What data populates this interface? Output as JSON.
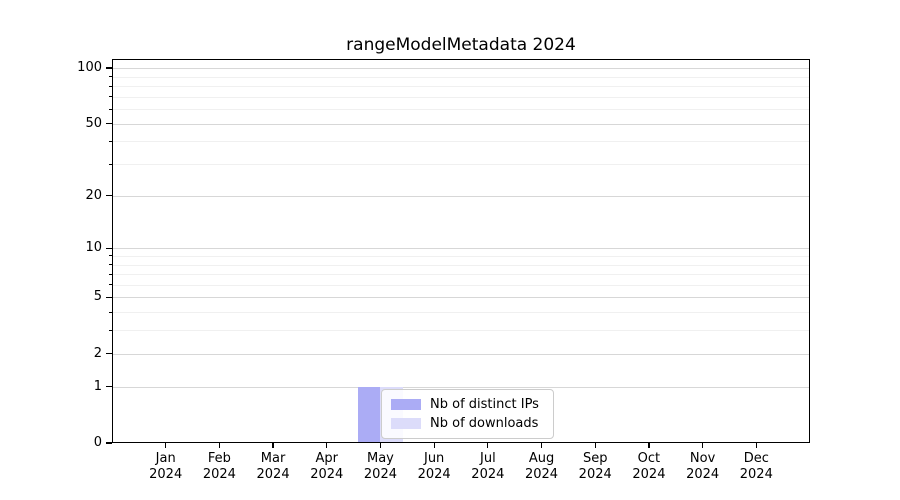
{
  "chart_data": {
    "type": "bar",
    "title": "rangeModelMetadata 2024",
    "categories": [
      "Jan",
      "Feb",
      "Mar",
      "Apr",
      "May",
      "Jun",
      "Jul",
      "Aug",
      "Sep",
      "Oct",
      "Nov",
      "Dec"
    ],
    "year_label": "2024",
    "series": [
      {
        "name": "Nb of distinct IPs",
        "color": "#abacf5",
        "values": [
          0,
          0,
          0,
          0,
          1,
          0,
          0,
          0,
          0,
          0,
          0,
          0
        ]
      },
      {
        "name": "Nb of downloads",
        "color": "#dcdcfa",
        "values": [
          0,
          0,
          0,
          0,
          1,
          0,
          0,
          0,
          0,
          0,
          0,
          0
        ]
      }
    ],
    "xlabel": "",
    "ylabel": "",
    "yscale": "log1p",
    "ylim": [
      0,
      112
    ],
    "yticks_major": [
      0,
      1,
      2,
      5,
      10,
      20,
      50,
      100
    ],
    "ytick_labels": [
      "0",
      "1",
      "2",
      "5",
      "10",
      "20",
      "50",
      "100"
    ],
    "yticks_minor": [
      3,
      4,
      6,
      7,
      8,
      9,
      30,
      40,
      60,
      70,
      80,
      90
    ],
    "grid": "horizontal, major and minor",
    "legend_position": "lower center, overlapping May bars",
    "colors": {
      "grid_major": "#d7d7d7",
      "grid_minor": "#f0f0f0",
      "spine": "#000000",
      "background": "#ffffff"
    }
  }
}
